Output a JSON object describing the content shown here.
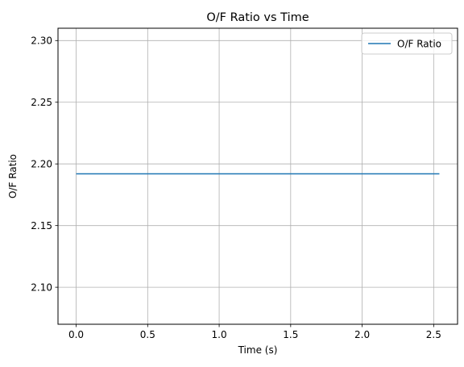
{
  "chart_data": {
    "type": "line",
    "title": "O/F Ratio vs Time",
    "xlabel": "Time (s)",
    "ylabel": "O/F Ratio",
    "xlim": [
      -0.127,
      2.667
    ],
    "ylim": [
      2.07,
      2.31
    ],
    "xticks": [
      0.0,
      0.5,
      1.0,
      1.5,
      2.0,
      2.5
    ],
    "xtick_labels": [
      "0.0",
      "0.5",
      "1.0",
      "1.5",
      "2.0",
      "2.5"
    ],
    "yticks": [
      2.1,
      2.15,
      2.2,
      2.25,
      2.3
    ],
    "ytick_labels": [
      "2.10",
      "2.15",
      "2.20",
      "2.25",
      "2.30"
    ],
    "grid": true,
    "legend_position": "top-right",
    "series": [
      {
        "name": "O/F Ratio",
        "color": "#1f77b4",
        "x": [
          0.0,
          2.54
        ],
        "y": [
          2.192,
          2.192
        ]
      }
    ]
  }
}
